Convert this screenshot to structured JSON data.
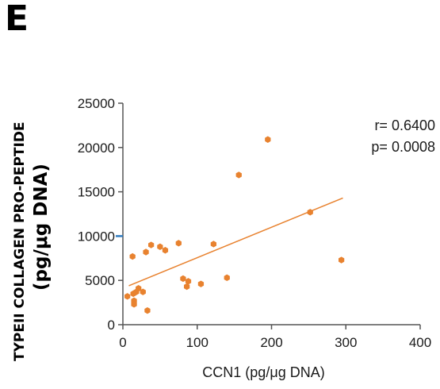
{
  "panel_label": "E",
  "chart_data": {
    "type": "scatter",
    "xlabel": "CCN1 (pg/μg DNA)",
    "ylabel_line1": "TYPEII  COLLAGEN PRO-PEPTIDE",
    "ylabel_line2": "(pg/μg DNA)",
    "xlim": [
      0,
      400
    ],
    "ylim": [
      0,
      25000
    ],
    "x_ticks": [
      "0",
      "100",
      "200",
      "300",
      "400"
    ],
    "y_ticks": [
      "0",
      "5000",
      "10000",
      "15000",
      "20000",
      "25000"
    ],
    "x_tick_values": [
      0,
      100,
      200,
      300,
      400
    ],
    "y_tick_values": [
      0,
      5000,
      10000,
      15000,
      20000,
      25000
    ],
    "annotations": [
      "r= 0.6400",
      "p= 0.0008"
    ],
    "points": [
      {
        "x": 6,
        "y": 3200
      },
      {
        "x": 13,
        "y": 7700
      },
      {
        "x": 14,
        "y": 3500
      },
      {
        "x": 15,
        "y": 2700
      },
      {
        "x": 15,
        "y": 2300
      },
      {
        "x": 18,
        "y": 3700
      },
      {
        "x": 21,
        "y": 4100
      },
      {
        "x": 27,
        "y": 3700
      },
      {
        "x": 31,
        "y": 8200
      },
      {
        "x": 33,
        "y": 1600
      },
      {
        "x": 38,
        "y": 9000
      },
      {
        "x": 50,
        "y": 8800
      },
      {
        "x": 57,
        "y": 8400
      },
      {
        "x": 75,
        "y": 9200
      },
      {
        "x": 81,
        "y": 5200
      },
      {
        "x": 86,
        "y": 4300
      },
      {
        "x": 88,
        "y": 4900
      },
      {
        "x": 105,
        "y": 4600
      },
      {
        "x": 122,
        "y": 9100
      },
      {
        "x": 140,
        "y": 5300
      },
      {
        "x": 156,
        "y": 16900
      },
      {
        "x": 195,
        "y": 20900
      },
      {
        "x": 252,
        "y": 12700
      },
      {
        "x": 294,
        "y": 7300
      }
    ],
    "trendline": {
      "x": [
        8,
        296
      ],
      "y": [
        4400,
        14300
      ]
    },
    "colors": {
      "points": "#e8822f",
      "trendline": "#e8822f",
      "axis": "#555555",
      "marker": "#2f7bbf"
    },
    "highlight_y": 10000,
    "grid": false
  }
}
